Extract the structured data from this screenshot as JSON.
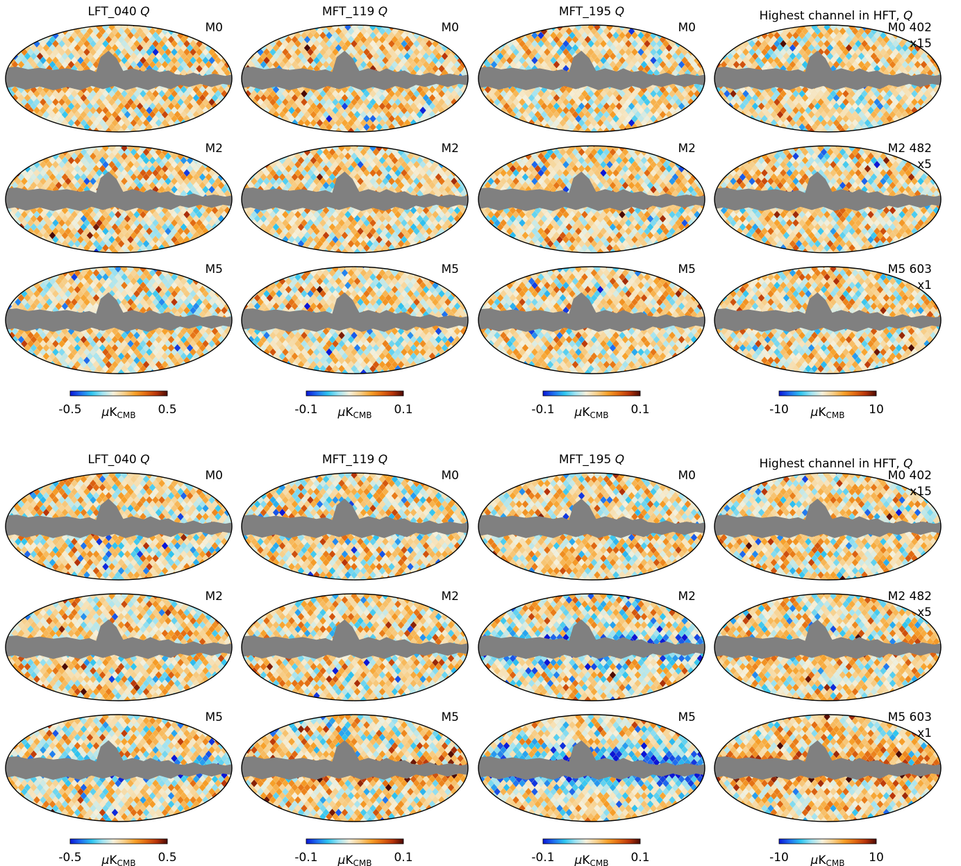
{
  "chart_data": {
    "type": "heatmap",
    "description_visible": "Mollweide full-sky Q-polarization maps (pixelated) with gray galactic mask; two blocks of 4 columns x 3 rows",
    "colormap": {
      "stops": [
        "#0a16d6",
        "#1f6ff0",
        "#2ec4f0",
        "#9fe3f2",
        "#f5f0dc",
        "#f7cf8a",
        "#f7a12a",
        "#e26a12",
        "#b8340a",
        "#4a0a04"
      ],
      "mask_color": "#808080"
    },
    "blocks": [
      {
        "columns": [
          {
            "title": "LFT_040",
            "title_italic": "Q",
            "extra": [
              "",
              "",
              ""
            ],
            "colorbar": {
              "min": "-0.5",
              "max": "0.5",
              "unit": "μK",
              "unit_sub": "CMB"
            }
          },
          {
            "title": "MFT_119",
            "title_italic": "Q",
            "extra": [
              "",
              "",
              ""
            ],
            "colorbar": {
              "min": "-0.1",
              "max": "0.1",
              "unit": "μK",
              "unit_sub": "CMB"
            }
          },
          {
            "title": "MFT_195",
            "title_italic": "Q",
            "extra": [
              "",
              "",
              ""
            ],
            "colorbar": {
              "min": "-0.1",
              "max": "0.1",
              "unit": "μK",
              "unit_sub": "CMB"
            }
          },
          {
            "title": "Highest channel in HFT,",
            "title_italic": "Q",
            "extra": [
              "402",
              "482",
              "603"
            ],
            "scale": [
              "x15",
              "x5",
              "x1"
            ],
            "colorbar": {
              "min": "-10",
              "max": "10",
              "unit": "μK",
              "unit_sub": "CMB"
            }
          }
        ],
        "rows": [
          {
            "label": "M0",
            "maps": [
              {
                "bias": 0,
                "band": 0,
                "seed": 11
              },
              {
                "bias": 0,
                "band": 0,
                "seed": 12
              },
              {
                "bias": 0,
                "band": 0,
                "seed": 13
              },
              {
                "bias": 0,
                "band": 0,
                "seed": 14
              }
            ]
          },
          {
            "label": "M2",
            "maps": [
              {
                "bias": 0,
                "band": 0,
                "seed": 21
              },
              {
                "bias": 0,
                "band": 0,
                "seed": 22
              },
              {
                "bias": 0,
                "band": 0,
                "seed": 23
              },
              {
                "bias": 0,
                "band": 0,
                "seed": 24
              }
            ]
          },
          {
            "label": "M5",
            "maps": [
              {
                "bias": 0,
                "band": 0,
                "seed": 31
              },
              {
                "bias": 0,
                "band": 0,
                "seed": 32
              },
              {
                "bias": 0,
                "band": 0,
                "seed": 33
              },
              {
                "bias": 0,
                "band": 0,
                "seed": 34
              }
            ]
          }
        ]
      },
      {
        "columns": [
          {
            "title": "LFT_040",
            "title_italic": "Q",
            "extra": [
              "",
              "",
              ""
            ],
            "colorbar": {
              "min": "-0.5",
              "max": "0.5",
              "unit": "μK",
              "unit_sub": "CMB"
            }
          },
          {
            "title": "MFT_119",
            "title_italic": "Q",
            "extra": [
              "",
              "",
              ""
            ],
            "colorbar": {
              "min": "-0.1",
              "max": "0.1",
              "unit": "μK",
              "unit_sub": "CMB"
            }
          },
          {
            "title": "MFT_195",
            "title_italic": "Q",
            "extra": [
              "",
              "",
              ""
            ],
            "colorbar": {
              "min": "-0.1",
              "max": "0.1",
              "unit": "μK",
              "unit_sub": "CMB"
            }
          },
          {
            "title": "Highest channel in HFT,",
            "title_italic": "Q",
            "extra": [
              "402",
              "482",
              "603"
            ],
            "scale": [
              "x15",
              "x5",
              "x1"
            ],
            "colorbar": {
              "min": "-10",
              "max": "10",
              "unit": "μK",
              "unit_sub": "CMB"
            }
          }
        ],
        "rows": [
          {
            "label": "M0",
            "maps": [
              {
                "bias": 0,
                "band": 0,
                "seed": 41
              },
              {
                "bias": 0,
                "band": 0,
                "seed": 42
              },
              {
                "bias": 0,
                "band": 0,
                "seed": 43
              },
              {
                "bias": 0,
                "band": 0,
                "seed": 44
              }
            ]
          },
          {
            "label": "M2",
            "maps": [
              {
                "bias": 0,
                "band": 0,
                "seed": 51
              },
              {
                "bias": 0,
                "band": 0,
                "seed": 52
              },
              {
                "bias": -0.75,
                "band": 0.6,
                "seed": 53
              },
              {
                "bias": 0.25,
                "band": 0.35,
                "seed": 54
              }
            ]
          },
          {
            "label": "M5",
            "maps": [
              {
                "bias": -0.55,
                "band": 0.5,
                "seed": 61
              },
              {
                "bias": 0.55,
                "band": 0.6,
                "seed": 62
              },
              {
                "bias": -1.0,
                "band": 0.85,
                "seed": 63
              },
              {
                "bias": 0.65,
                "band": 0.7,
                "seed": 64
              }
            ]
          }
        ]
      }
    ]
  }
}
